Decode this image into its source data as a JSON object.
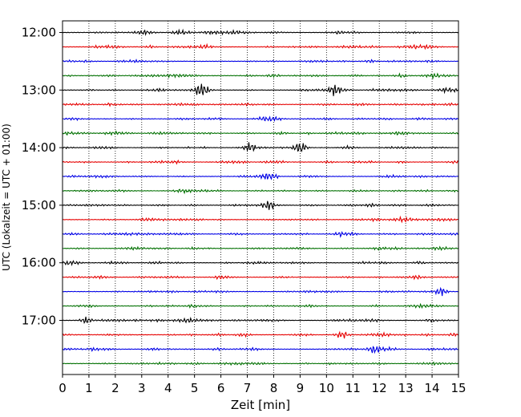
{
  "chart_data": {
    "type": "line",
    "chart_kind": "helicorder",
    "title": "",
    "xlabel": "Zeit  [min]",
    "ylabel": "UTC (Lokalzeit = UTC + 01:00)",
    "xlim": [
      0,
      15
    ],
    "x_ticks": [
      0,
      1,
      2,
      3,
      4,
      5,
      6,
      7,
      8,
      9,
      10,
      11,
      12,
      13,
      14,
      15
    ],
    "x_tick_labels": [
      "0",
      "1",
      "2",
      "3",
      "4",
      "5",
      "6",
      "7",
      "8",
      "9",
      "10",
      "11",
      "12",
      "13",
      "14",
      "15"
    ],
    "y_tick_labels": [
      "12:00",
      "13:00",
      "14:00",
      "15:00",
      "16:00",
      "17:00"
    ],
    "trace_count": 24,
    "trace_interval_minutes": 15,
    "vertical_grid": "dotted",
    "colors": [
      "#000000",
      "#e60000",
      "#0000e6",
      "#007000"
    ],
    "events": [
      {
        "trace": 4,
        "minute": 5.3,
        "amplitude": 1.0
      },
      {
        "trace": 4,
        "minute": 10.3,
        "amplitude": 0.65
      },
      {
        "trace": 8,
        "minute": 9.0,
        "amplitude": 0.75
      },
      {
        "trace": 8,
        "minute": 7.1,
        "amplitude": 0.45
      },
      {
        "trace": 10,
        "minute": 7.8,
        "amplitude": 0.45
      },
      {
        "trace": 12,
        "minute": 7.8,
        "amplitude": 0.5
      },
      {
        "trace": 18,
        "minute": 14.3,
        "amplitude": 0.55
      },
      {
        "trace": 20,
        "minute": 0.9,
        "amplitude": 0.45
      },
      {
        "trace": 21,
        "minute": 10.6,
        "amplitude": 0.45
      },
      {
        "trace": 22,
        "minute": 11.8,
        "amplitude": 0.45
      }
    ]
  }
}
